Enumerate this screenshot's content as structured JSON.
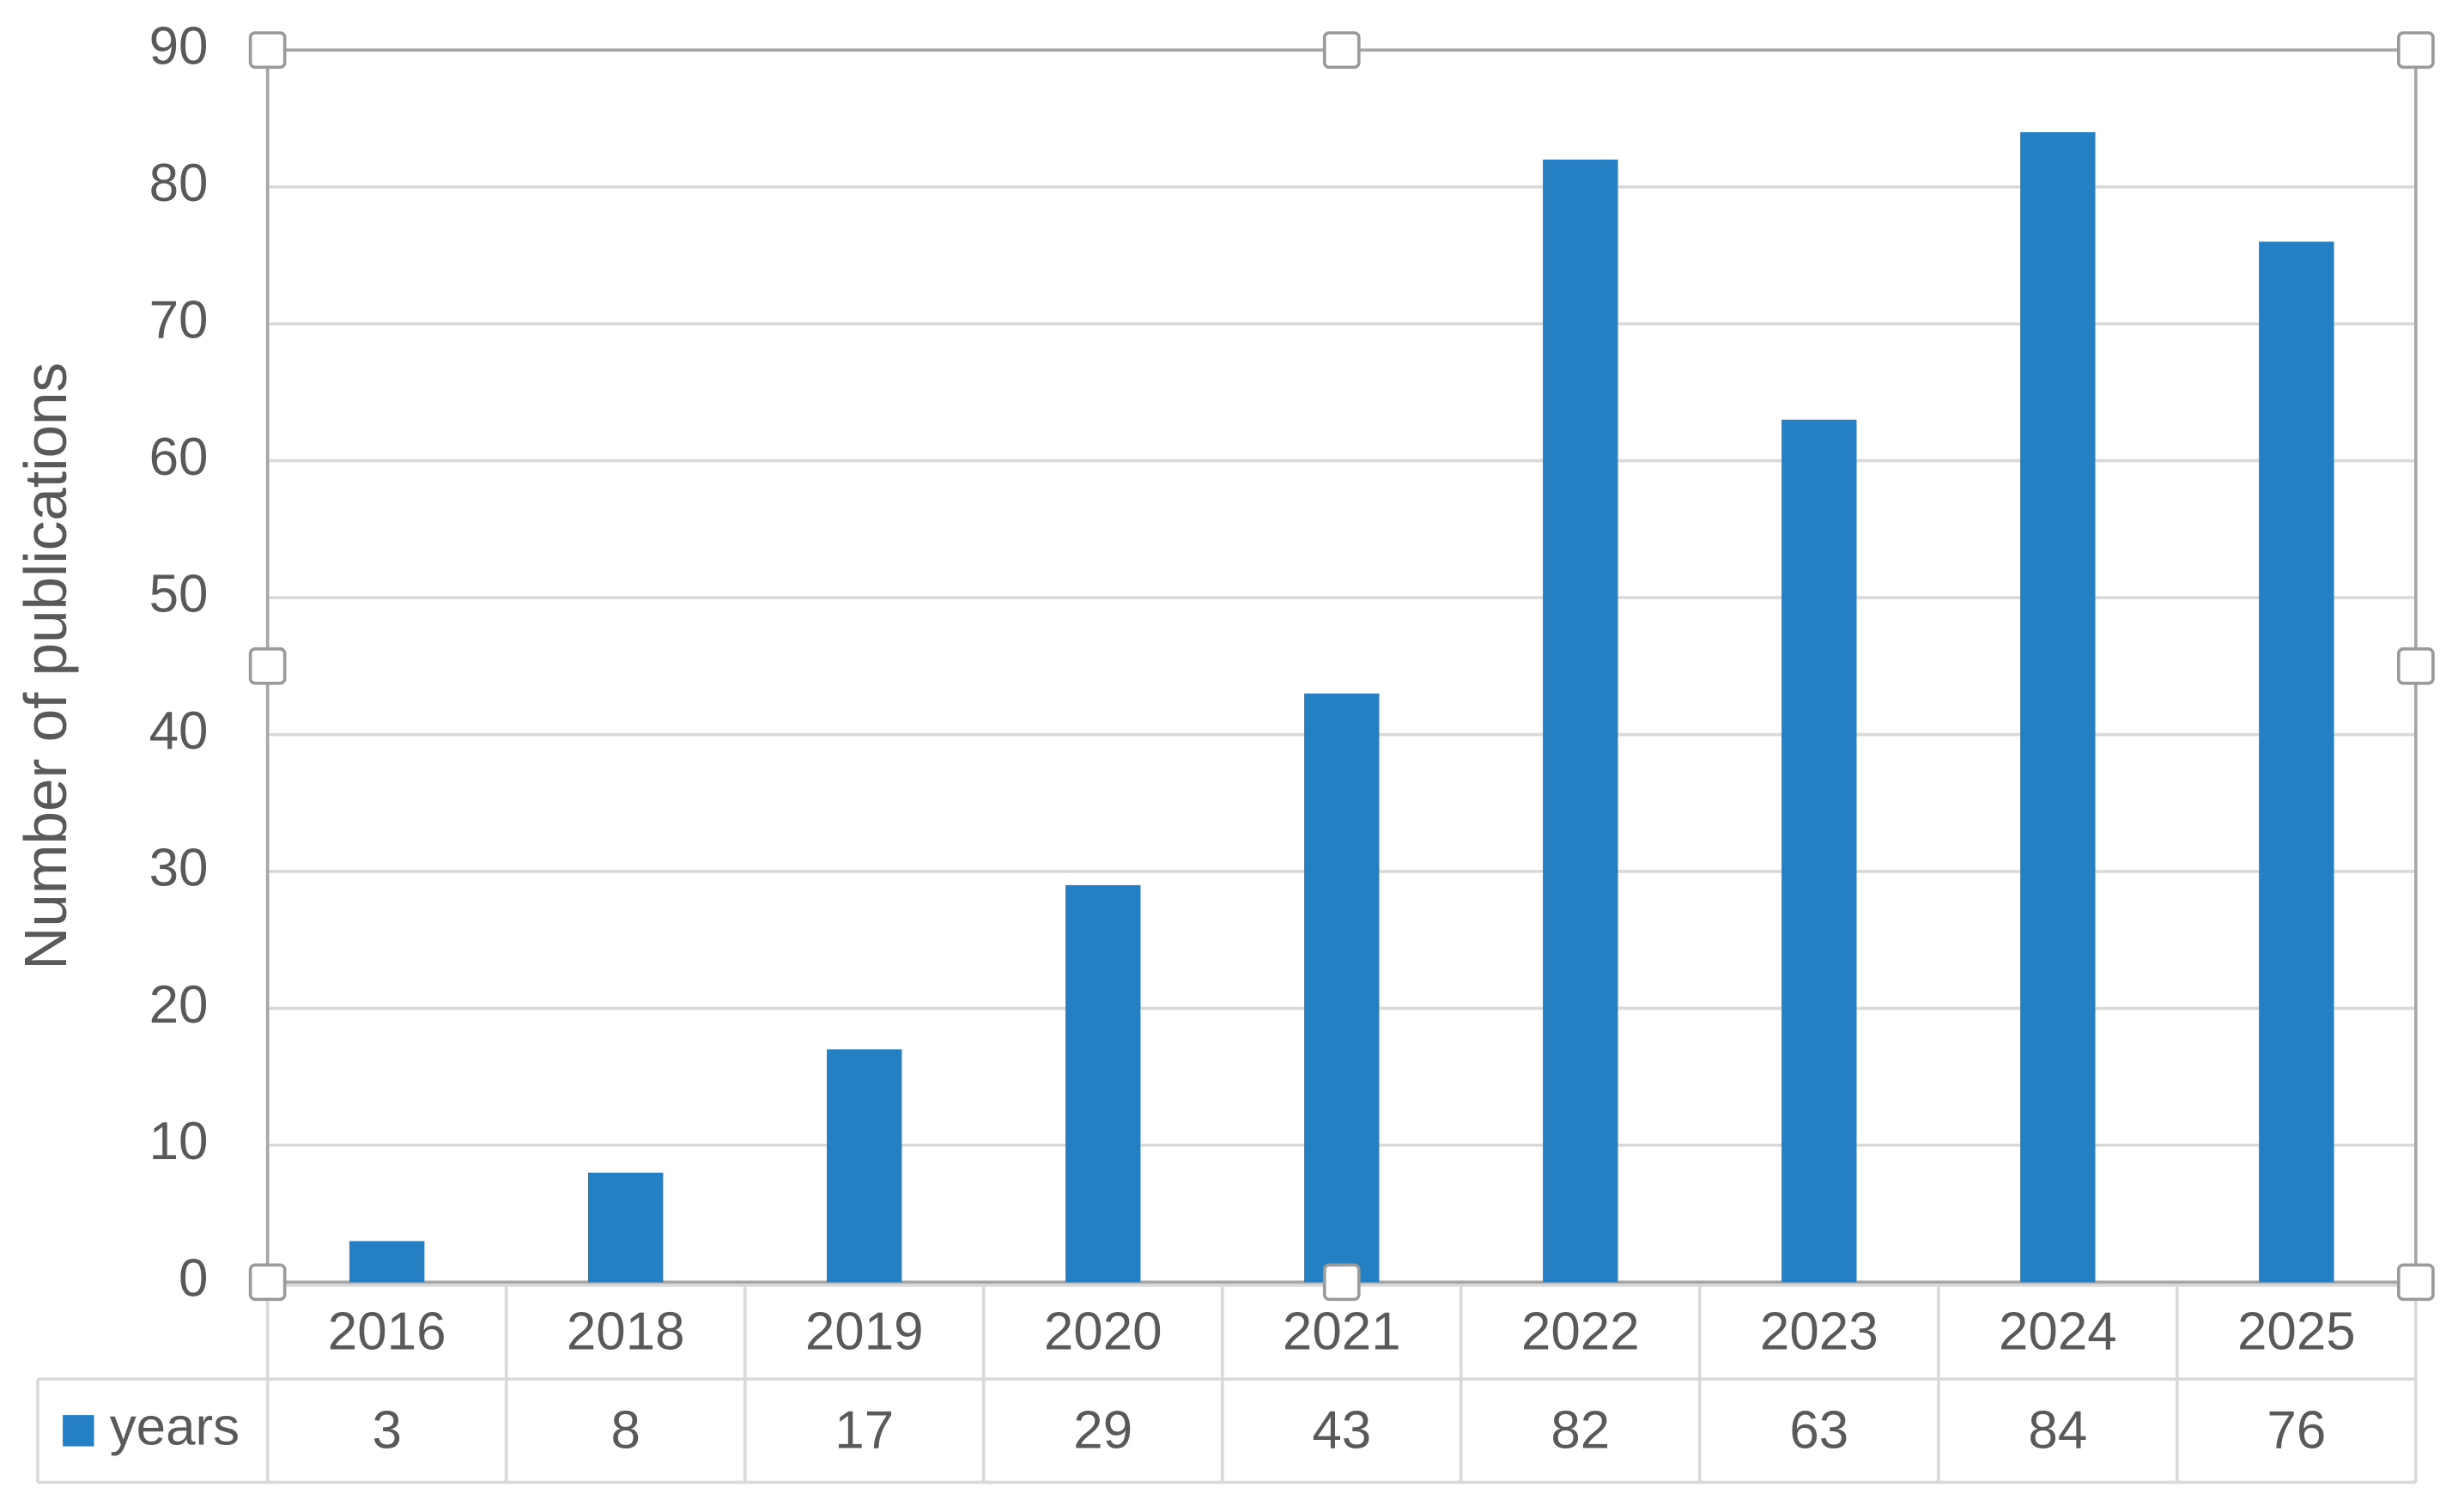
{
  "chart_data": {
    "type": "bar",
    "y_label": "Number of publications",
    "categories": [
      "2016",
      "2018",
      "2019",
      "2020",
      "2021",
      "2022",
      "2023",
      "2024",
      "2025"
    ],
    "series": [
      {
        "name": "years",
        "color": "#2580c3",
        "values": [
          3,
          8,
          17,
          29,
          43,
          82,
          63,
          84,
          76
        ]
      }
    ],
    "ylim": [
      0,
      90
    ],
    "yticks": [
      0,
      10,
      20,
      30,
      40,
      50,
      60,
      70,
      80,
      90
    ],
    "grid": true,
    "data_table": true
  }
}
